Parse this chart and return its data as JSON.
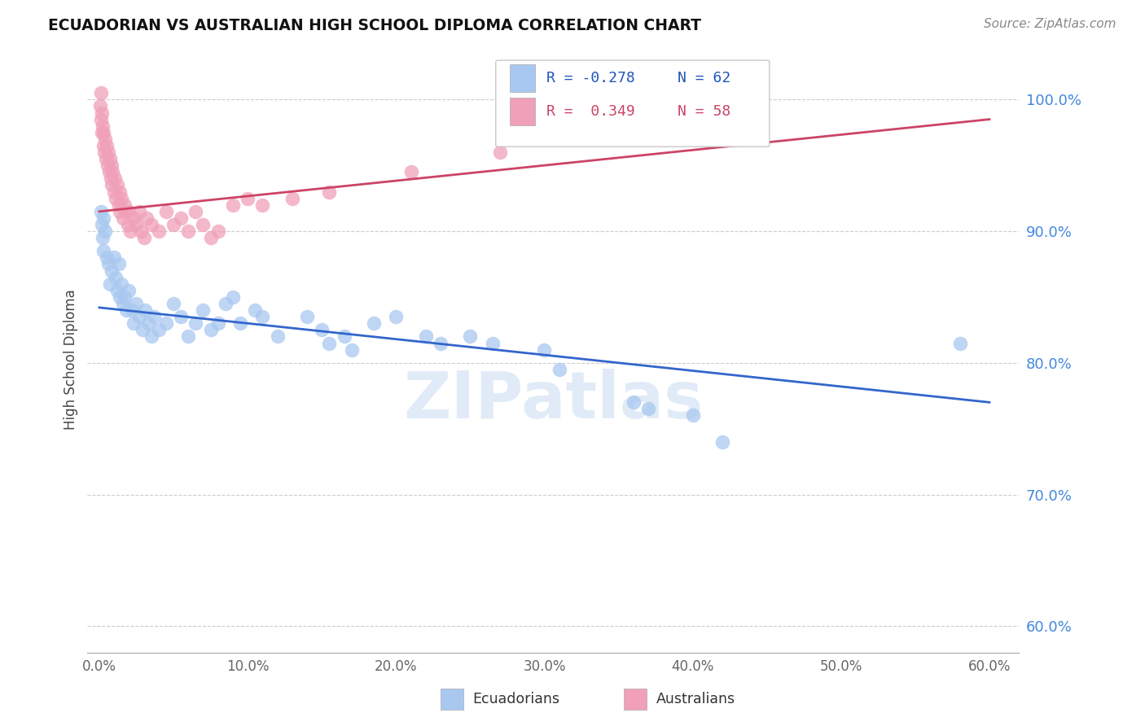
{
  "title": "ECUADORIAN VS AUSTRALIAN HIGH SCHOOL DIPLOMA CORRELATION CHART",
  "source": "Source: ZipAtlas.com",
  "ylabel": "High School Diploma",
  "y_ticks": [
    60.0,
    70.0,
    80.0,
    90.0,
    100.0
  ],
  "x_ticks": [
    0.0,
    10.0,
    20.0,
    30.0,
    40.0,
    50.0,
    60.0
  ],
  "x_min": -0.8,
  "x_max": 62.0,
  "y_min": 58.0,
  "y_max": 102.5,
  "watermark": "ZIPatlas",
  "legend_blue_r": "R = -0.278",
  "legend_blue_n": "N = 62",
  "legend_pink_r": "R =  0.349",
  "legend_pink_n": "N = 58",
  "blue_color": "#a8c8f0",
  "pink_color": "#f0a0b8",
  "blue_line_color": "#3366cc",
  "pink_line_color": "#cc4466",
  "blue_scatter": [
    [
      0.1,
      91.5
    ],
    [
      0.15,
      90.5
    ],
    [
      0.2,
      89.5
    ],
    [
      0.25,
      91.0
    ],
    [
      0.3,
      88.5
    ],
    [
      0.4,
      90.0
    ],
    [
      0.5,
      88.0
    ],
    [
      0.6,
      87.5
    ],
    [
      0.7,
      86.0
    ],
    [
      0.8,
      87.0
    ],
    [
      1.0,
      88.0
    ],
    [
      1.1,
      86.5
    ],
    [
      1.2,
      85.5
    ],
    [
      1.3,
      87.5
    ],
    [
      1.4,
      85.0
    ],
    [
      1.5,
      86.0
    ],
    [
      1.6,
      84.5
    ],
    [
      1.7,
      85.0
    ],
    [
      1.8,
      84.0
    ],
    [
      2.0,
      85.5
    ],
    [
      2.2,
      84.0
    ],
    [
      2.3,
      83.0
    ],
    [
      2.5,
      84.5
    ],
    [
      2.7,
      83.5
    ],
    [
      2.9,
      82.5
    ],
    [
      3.1,
      84.0
    ],
    [
      3.3,
      83.0
    ],
    [
      3.5,
      82.0
    ],
    [
      3.7,
      83.5
    ],
    [
      4.0,
      82.5
    ],
    [
      4.5,
      83.0
    ],
    [
      5.0,
      84.5
    ],
    [
      5.5,
      83.5
    ],
    [
      6.0,
      82.0
    ],
    [
      6.5,
      83.0
    ],
    [
      7.0,
      84.0
    ],
    [
      7.5,
      82.5
    ],
    [
      8.0,
      83.0
    ],
    [
      8.5,
      84.5
    ],
    [
      9.0,
      85.0
    ],
    [
      9.5,
      83.0
    ],
    [
      10.5,
      84.0
    ],
    [
      11.0,
      83.5
    ],
    [
      12.0,
      82.0
    ],
    [
      14.0,
      83.5
    ],
    [
      15.0,
      82.5
    ],
    [
      15.5,
      81.5
    ],
    [
      16.5,
      82.0
    ],
    [
      17.0,
      81.0
    ],
    [
      18.5,
      83.0
    ],
    [
      20.0,
      83.5
    ],
    [
      22.0,
      82.0
    ],
    [
      23.0,
      81.5
    ],
    [
      25.0,
      82.0
    ],
    [
      26.5,
      81.5
    ],
    [
      30.0,
      81.0
    ],
    [
      31.0,
      79.5
    ],
    [
      36.0,
      77.0
    ],
    [
      37.0,
      76.5
    ],
    [
      40.0,
      76.0
    ],
    [
      42.0,
      74.0
    ],
    [
      58.0,
      81.5
    ]
  ],
  "pink_scatter": [
    [
      0.05,
      99.5
    ],
    [
      0.1,
      100.5
    ],
    [
      0.12,
      98.5
    ],
    [
      0.15,
      99.0
    ],
    [
      0.18,
      97.5
    ],
    [
      0.2,
      98.0
    ],
    [
      0.25,
      96.5
    ],
    [
      0.3,
      97.5
    ],
    [
      0.35,
      96.0
    ],
    [
      0.4,
      97.0
    ],
    [
      0.45,
      95.5
    ],
    [
      0.5,
      96.5
    ],
    [
      0.55,
      95.0
    ],
    [
      0.6,
      96.0
    ],
    [
      0.65,
      94.5
    ],
    [
      0.7,
      95.5
    ],
    [
      0.75,
      94.0
    ],
    [
      0.8,
      95.0
    ],
    [
      0.85,
      93.5
    ],
    [
      0.9,
      94.5
    ],
    [
      1.0,
      93.0
    ],
    [
      1.05,
      94.0
    ],
    [
      1.1,
      92.5
    ],
    [
      1.2,
      93.5
    ],
    [
      1.3,
      92.0
    ],
    [
      1.35,
      93.0
    ],
    [
      1.4,
      91.5
    ],
    [
      1.5,
      92.5
    ],
    [
      1.6,
      91.0
    ],
    [
      1.7,
      92.0
    ],
    [
      1.8,
      91.5
    ],
    [
      1.9,
      90.5
    ],
    [
      2.0,
      91.5
    ],
    [
      2.1,
      90.0
    ],
    [
      2.3,
      91.0
    ],
    [
      2.5,
      90.5
    ],
    [
      2.7,
      91.5
    ],
    [
      2.8,
      90.0
    ],
    [
      3.0,
      89.5
    ],
    [
      3.2,
      91.0
    ],
    [
      3.5,
      90.5
    ],
    [
      4.0,
      90.0
    ],
    [
      4.5,
      91.5
    ],
    [
      5.0,
      90.5
    ],
    [
      5.5,
      91.0
    ],
    [
      6.0,
      90.0
    ],
    [
      6.5,
      91.5
    ],
    [
      7.0,
      90.5
    ],
    [
      7.5,
      89.5
    ],
    [
      8.0,
      90.0
    ],
    [
      9.0,
      92.0
    ],
    [
      10.0,
      92.5
    ],
    [
      11.0,
      92.0
    ],
    [
      13.0,
      92.5
    ],
    [
      15.5,
      93.0
    ],
    [
      21.0,
      94.5
    ],
    [
      27.0,
      96.0
    ],
    [
      35.0,
      98.5
    ]
  ],
  "blue_trendline": [
    [
      0.0,
      84.2
    ],
    [
      60.0,
      77.0
    ]
  ],
  "pink_trendline": [
    [
      0.0,
      91.5
    ],
    [
      60.0,
      98.5
    ]
  ]
}
